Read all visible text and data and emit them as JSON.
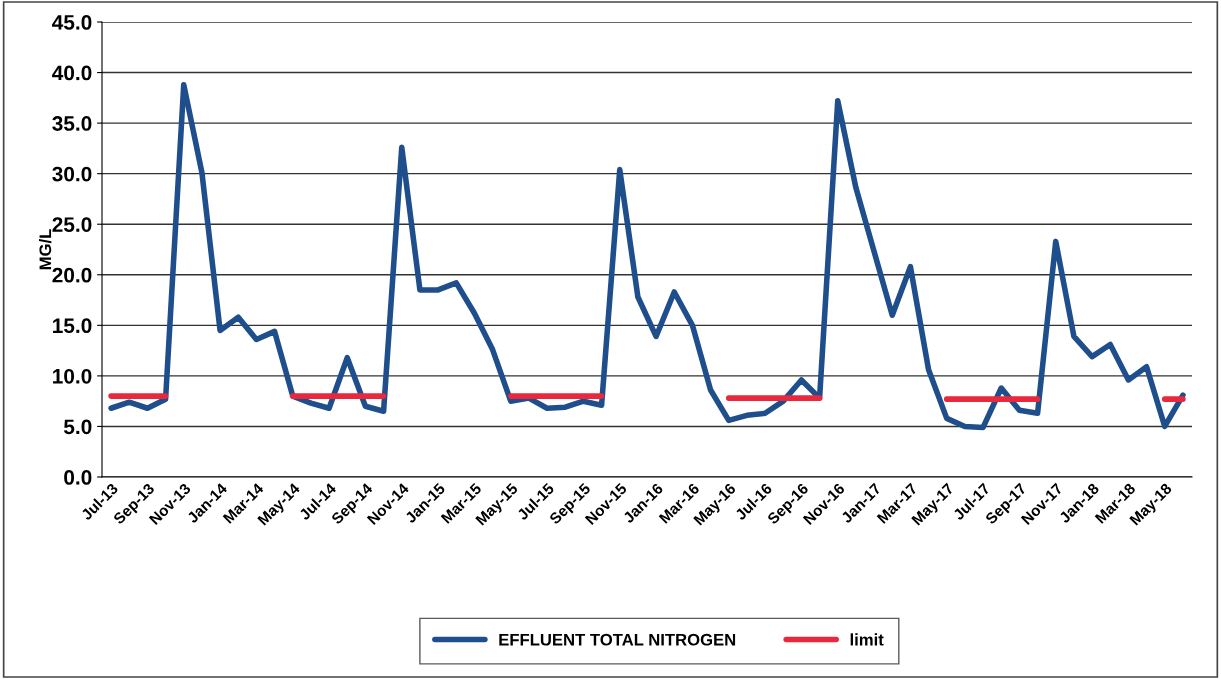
{
  "chart_data": {
    "type": "line",
    "ylabel": "MG/L",
    "categories": [
      "Jul-13",
      null,
      "Sep-13",
      null,
      "Nov-13",
      null,
      "Jan-14",
      null,
      "Mar-14",
      null,
      "May-14",
      null,
      "Jul-14",
      null,
      "Sep-14",
      null,
      "Nov-14",
      null,
      "Jan-15",
      null,
      "Mar-15",
      null,
      "May-15",
      null,
      "Jul-15",
      null,
      "Sep-15",
      null,
      "Nov-15",
      null,
      "Jan-16",
      null,
      "Mar-16",
      null,
      "May-16",
      null,
      "Jul-16",
      null,
      "Sep-16",
      null,
      "Nov-16",
      null,
      "Jan-17",
      null,
      "Mar-17",
      null,
      "May-17",
      null,
      "Jul-17",
      null,
      "Sep-17",
      null,
      "Nov-17",
      null,
      "Jan-18",
      null,
      "Mar-18",
      null,
      "May-18",
      null
    ],
    "series": [
      {
        "name": "EFFLUENT TOTAL NITROGEN",
        "color": "#1f4e8c",
        "values": [
          6.8,
          7.4,
          6.8,
          7.7,
          38.8,
          30.1,
          14.5,
          15.8,
          13.6,
          14.4,
          8.0,
          7.3,
          6.8,
          11.8,
          7.0,
          6.5,
          32.6,
          18.5,
          18.5,
          19.2,
          16.2,
          12.6,
          7.5,
          7.8,
          6.8,
          6.9,
          7.5,
          7.1,
          30.4,
          17.8,
          13.9,
          18.3,
          15.0,
          8.6,
          5.6,
          6.1,
          6.3,
          7.5,
          9.6,
          7.8,
          37.2,
          28.6,
          22.3,
          16.0,
          20.8,
          10.6,
          5.8,
          5.0,
          4.9,
          8.8,
          6.6,
          6.3,
          23.3,
          13.9,
          11.9,
          13.1,
          9.6,
          10.9,
          5.0,
          8.1
        ]
      },
      {
        "name": "limit",
        "color": "#e8283c",
        "values": [
          8.0,
          8.0,
          8.0,
          8.0,
          null,
          null,
          null,
          null,
          null,
          null,
          8.0,
          8.0,
          8.0,
          8.0,
          8.0,
          8.0,
          null,
          null,
          null,
          null,
          null,
          null,
          8.0,
          8.0,
          8.0,
          8.0,
          8.0,
          8.0,
          null,
          null,
          null,
          null,
          null,
          null,
          7.8,
          7.8,
          7.8,
          7.8,
          7.8,
          7.8,
          null,
          null,
          null,
          null,
          null,
          null,
          7.7,
          7.7,
          7.7,
          7.7,
          7.7,
          7.7,
          null,
          null,
          null,
          null,
          null,
          null,
          7.7,
          7.7
        ]
      }
    ],
    "ylim": [
      0,
      45
    ],
    "yticks": [
      {
        "value": 0,
        "label": "0.0"
      },
      {
        "value": 5,
        "label": "5.0"
      },
      {
        "value": 10,
        "label": "10.0"
      },
      {
        "value": 15,
        "label": "15.0"
      },
      {
        "value": 20,
        "label": "20.0"
      },
      {
        "value": 25,
        "label": "25.0"
      },
      {
        "value": 30,
        "label": "30.0"
      },
      {
        "value": 35,
        "label": "35.0"
      },
      {
        "value": 40,
        "label": "40.0"
      },
      {
        "value": 45,
        "label": "45.0"
      }
    ],
    "grid": "y",
    "legend": "bottom",
    "marker": "none",
    "line_style": "solid"
  }
}
